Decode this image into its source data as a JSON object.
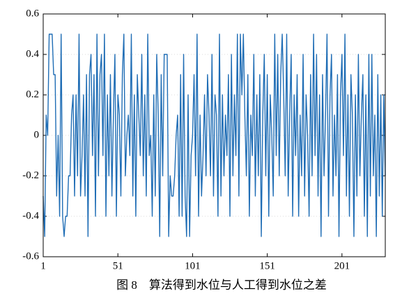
{
  "chart_data": {
    "type": "line",
    "caption": "图 8　算法得到水位与人工得到水位之差",
    "x": [
      1,
      2,
      3,
      4,
      5,
      6,
      7,
      8,
      9,
      10,
      11,
      12,
      13,
      14,
      15,
      16,
      17,
      18,
      19,
      20,
      21,
      22,
      23,
      24,
      25,
      26,
      27,
      28,
      29,
      30,
      31,
      32,
      33,
      34,
      35,
      36,
      37,
      38,
      39,
      40,
      41,
      42,
      43,
      44,
      45,
      46,
      47,
      48,
      49,
      50,
      51,
      52,
      53,
      54,
      55,
      56,
      57,
      58,
      59,
      60,
      61,
      62,
      63,
      64,
      65,
      66,
      67,
      68,
      69,
      70,
      71,
      72,
      73,
      74,
      75,
      76,
      77,
      78,
      79,
      80,
      81,
      82,
      83,
      84,
      85,
      86,
      87,
      88,
      89,
      90,
      91,
      92,
      93,
      94,
      95,
      96,
      97,
      98,
      99,
      100,
      101,
      102,
      103,
      104,
      105,
      106,
      107,
      108,
      109,
      110,
      111,
      112,
      113,
      114,
      115,
      116,
      117,
      118,
      119,
      120,
      121,
      122,
      123,
      124,
      125,
      126,
      127,
      128,
      129,
      130,
      131,
      132,
      133,
      134,
      135,
      136,
      137,
      138,
      139,
      140,
      141,
      142,
      143,
      144,
      145,
      146,
      147,
      148,
      149,
      150,
      151,
      152,
      153,
      154,
      155,
      156,
      157,
      158,
      159,
      160,
      161,
      162,
      163,
      164,
      165,
      166,
      167,
      168,
      169,
      170,
      171,
      172,
      173,
      174,
      175,
      176,
      177,
      178,
      179,
      180,
      181,
      182,
      183,
      184,
      185,
      186,
      187,
      188,
      189,
      190,
      191,
      192,
      193,
      194,
      195,
      196,
      197,
      198,
      199,
      200,
      201,
      202,
      203,
      204,
      205,
      206,
      207,
      208,
      209,
      210,
      211,
      212,
      213,
      214,
      215,
      216,
      217,
      218,
      219,
      220,
      221,
      222,
      223,
      224,
      225,
      226,
      227,
      228,
      229,
      230
    ],
    "values": [
      -0.3,
      -0.5,
      0.1,
      0,
      0.5,
      0.5,
      0.5,
      0.3,
      0.3,
      -0.3,
      0,
      -0.4,
      0.5,
      -0.4,
      -0.5,
      -0.4,
      -0.4,
      -0.2,
      -0.2,
      0.1,
      0.2,
      -0.3,
      0.2,
      -0.2,
      0.5,
      -0.3,
      -0.1,
      0.2,
      -0.3,
      0.3,
      -0.5,
      0.3,
      0.4,
      -0.1,
      0.3,
      -0.4,
      0.5,
      -0.2,
      0.3,
      0.4,
      -0.1,
      0.5,
      -0.4,
      0.2,
      -0.2,
      0.3,
      -0.3,
      0.1,
      0.4,
      -0.4,
      0.2,
      0.1,
      -0.3,
      0.3,
      0.5,
      -0.2,
      0,
      0.1,
      -0.1,
      0.5,
      -0.3,
      0.2,
      -0.4,
      0.3,
      0.1,
      -0.1,
      0.4,
      -0.2,
      0.2,
      -0.3,
      0.5,
      -0.1,
      0,
      -0.4,
      0.2,
      -0.3,
      0.4,
      0.1,
      -0.5,
      0.3,
      -0.2,
      0.4,
      0.4,
      0.4,
      -0.5,
      -0.2,
      -0.3,
      -0.3,
      -0.2,
      0,
      0.1,
      -0.4,
      0.3,
      -0.4,
      0.4,
      -0.3,
      -0.5,
      0.2,
      -0.5,
      -0.1,
      0,
      0.3,
      -0.2,
      0.5,
      -0.4,
      0.1,
      -0.3,
      -0.1,
      0.2,
      -0.2,
      0.3,
      0.1,
      -0.2,
      0.4,
      -0.3,
      0.2,
      0.1,
      -0.4,
      0.5,
      -0.3,
      0.2,
      -0.2,
      0.1,
      -0.1,
      0.3,
      -0.4,
      0.4,
      -0.2,
      0.2,
      -0.1,
      0.5,
      -0.3,
      0.5,
      0.2,
      0.5,
      0.1,
      -0.2,
      0.3,
      -0.4,
      0.1,
      -0.1,
      0.4,
      -0.3,
      0.2,
      -0.2,
      0.3,
      -0.5,
      0.1,
      0.4,
      -0.2,
      0.3,
      -0.4,
      0.2,
      0,
      -0.3,
      0.5,
      -0.1,
      0.4,
      -0.2,
      0.3,
      0.5,
      0.2,
      -0.2,
      0.5,
      -0.3,
      0.1,
      0.4,
      -0.4,
      0.2,
      -0.1,
      0.3,
      -0.4,
      0.1,
      -0.2,
      0.4,
      -0.3,
      0.2,
      0,
      -0.4,
      0.3,
      -0.2,
      0.5,
      -0.1,
      0.4,
      -0.3,
      0.2,
      -0.5,
      0.3,
      -0.2,
      0.1,
      0.5,
      -0.4,
      0.2,
      0.4,
      -0.3,
      0.1,
      -0.2,
      0.3,
      -0.5,
      0.2,
      0.4,
      -0.1,
      0.5,
      -0.3,
      0.2,
      -0.4,
      0.3,
      0.1,
      -0.5,
      0.2,
      -0.3,
      0.4,
      -0.2,
      0.1,
      0.3,
      -0.4,
      0.2,
      -0.5,
      0.4,
      -0.3,
      0.4,
      -0.2,
      0.1,
      -0.5,
      0.3,
      -0.3,
      0.2,
      -0.4,
      0.2,
      -0.2
    ],
    "color": "#1f6db5",
    "xlim": [
      1,
      230
    ],
    "xticks": [
      1,
      51,
      101,
      151,
      201
    ],
    "ylim": [
      -0.6,
      0.6
    ],
    "yticks": [
      -0.6,
      -0.4,
      -0.2,
      0,
      0.2,
      0.4,
      0.6
    ],
    "grid": true
  }
}
